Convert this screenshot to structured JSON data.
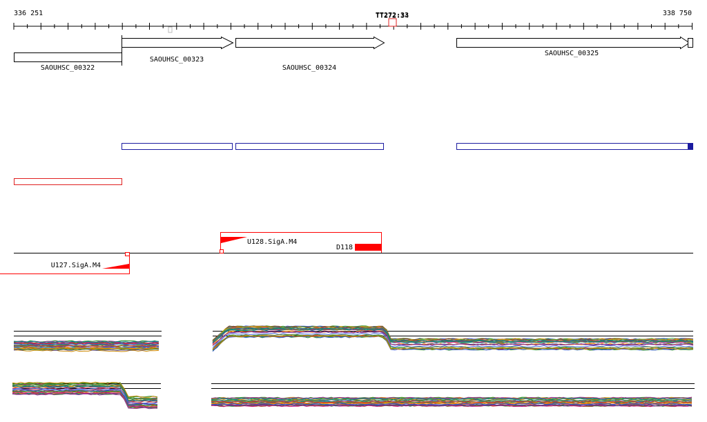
{
  "ruler": {
    "start_label": "336 251",
    "end_label": "338 750",
    "marker_label": "TT272:33",
    "marker_label_overlay": "TT272:34"
  },
  "genes": [
    {
      "id": "SAOUHSC_00322",
      "label": "SAOUHSC_00322",
      "strand": "-"
    },
    {
      "id": "SAOUHSC_00323",
      "label": "SAOUHSC_00323",
      "strand": "+"
    },
    {
      "id": "SAOUHSC_00324",
      "label": "SAOUHSC_00324",
      "strand": "+"
    },
    {
      "id": "SAOUHSC_00325",
      "label": "SAOUHSC_00325",
      "strand": "+"
    }
  ],
  "features": {
    "u127": "U127.SigA.M4",
    "u128": "U128.SigA.M4",
    "d118": "D118"
  },
  "colors": {
    "gene_outline": "#000000",
    "transcript_plus": "#1a1aa0",
    "transcript_minus": "#e02020",
    "feature_red": "#ff0000",
    "axis": "#000000"
  }
}
